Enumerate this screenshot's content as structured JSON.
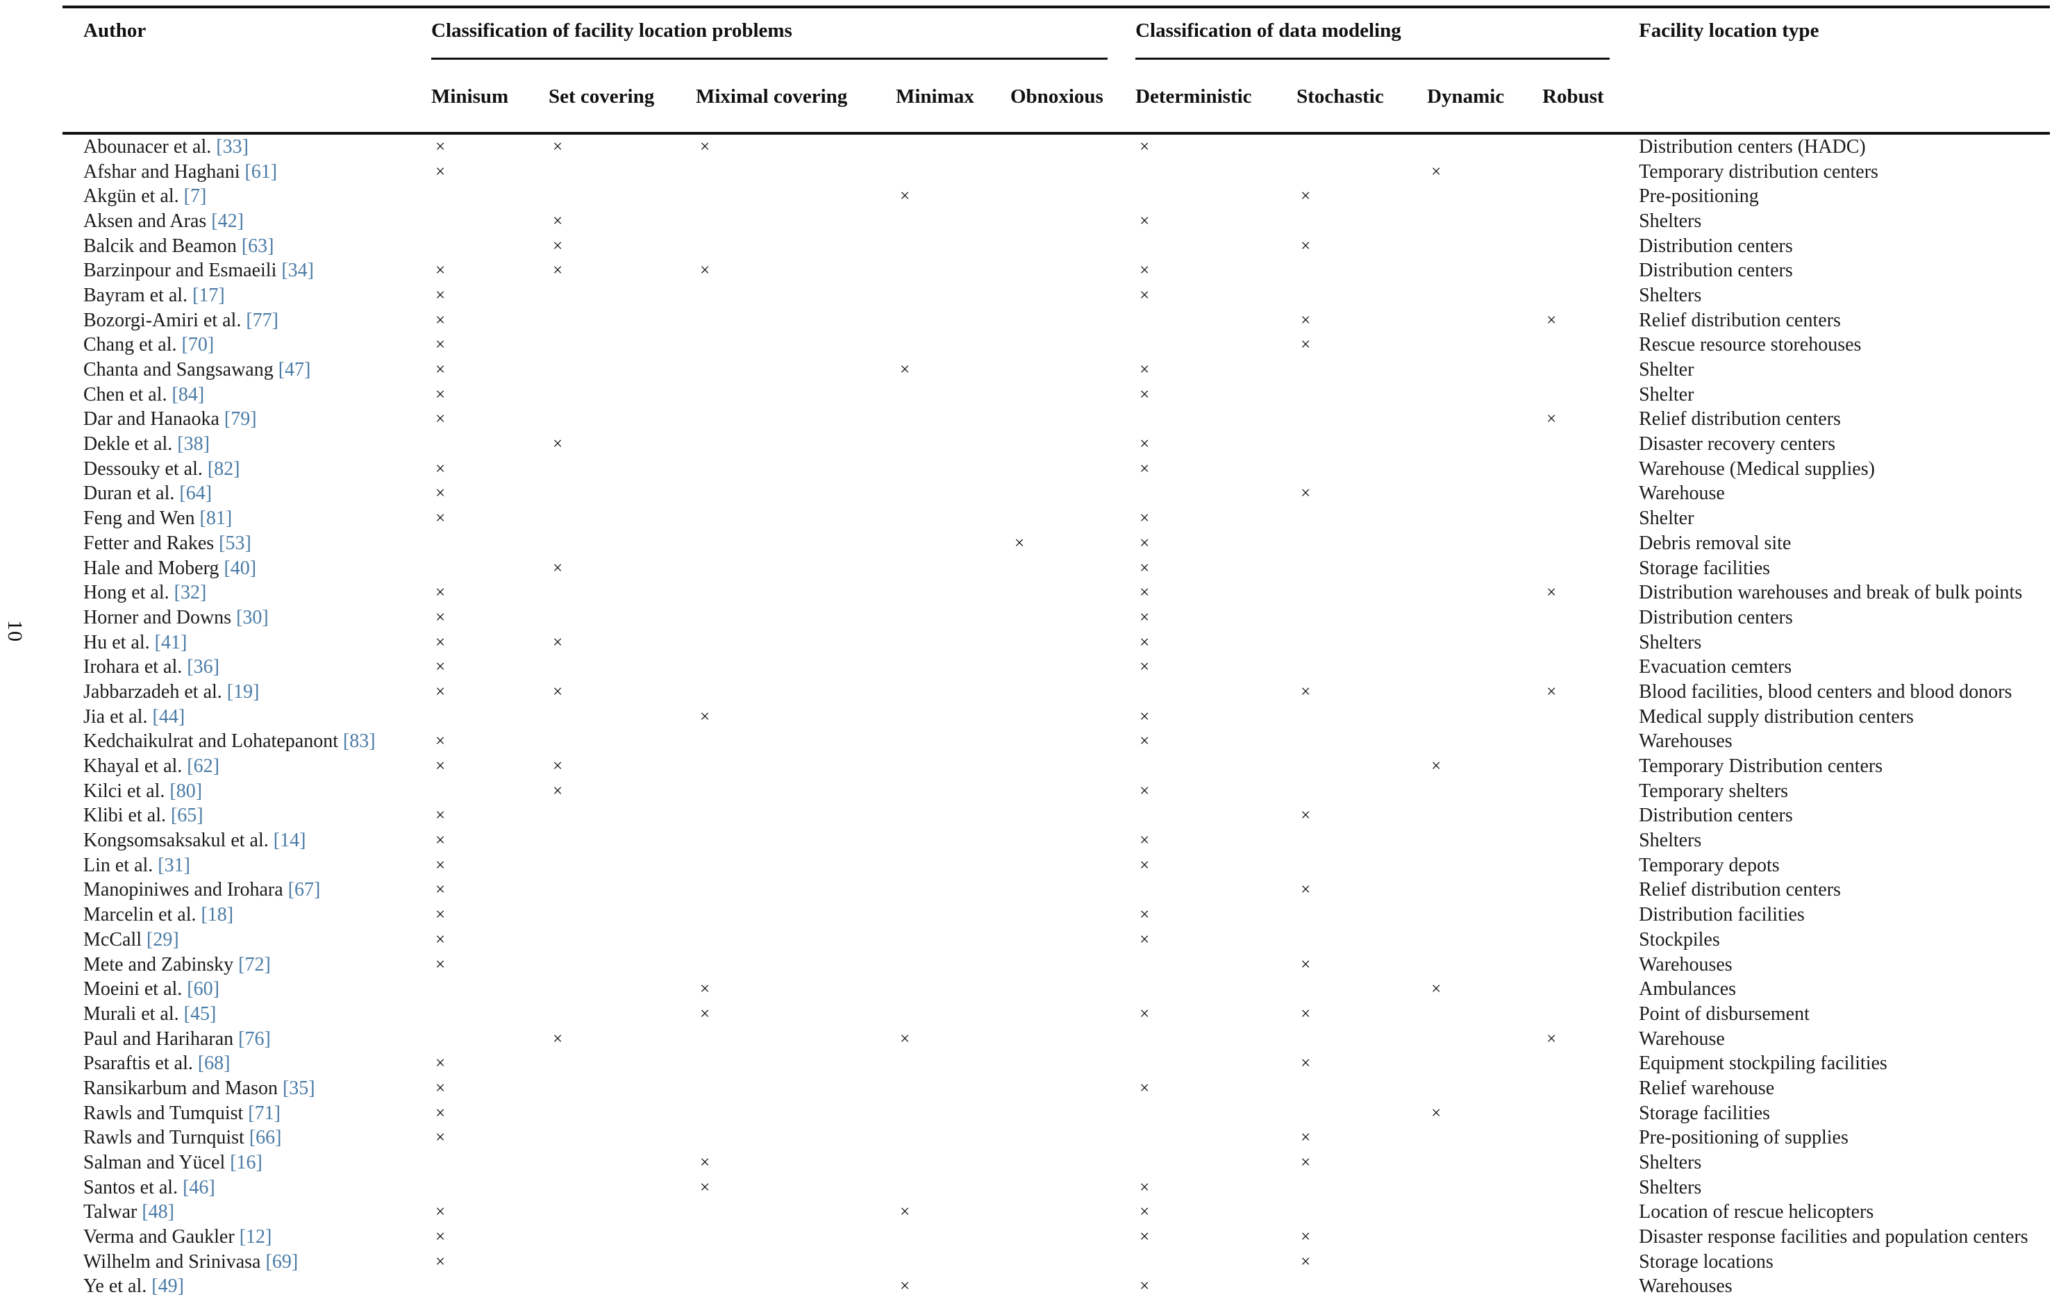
{
  "page_number": "10",
  "link_color": "#4a7ba6",
  "table": {
    "mark": "×",
    "headers": {
      "author": "Author",
      "group1": "Classification of facility location problems",
      "group2": "Classification of data modeling",
      "facility": "Facility location type",
      "sub1": [
        "Minisum",
        "Set covering",
        "Miximal covering",
        "Minimax",
        "Obnoxious"
      ],
      "sub2": [
        "Deterministic",
        "Stochastic",
        "Dynamic",
        "Robust"
      ]
    },
    "mark_columns": [
      "minisum",
      "set-covering",
      "miximal-covering",
      "minimax",
      "obnoxious",
      "deterministic",
      "stochastic",
      "dynamic",
      "robust"
    ],
    "rows": [
      {
        "author": "Abounacer et al.",
        "ref": "[33]",
        "marks": [
          1,
          1,
          1,
          0,
          0,
          1,
          0,
          0,
          0
        ],
        "type": "Distribution centers (HADC)"
      },
      {
        "author": "Afshar and Haghani",
        "ref": "[61]",
        "marks": [
          1,
          0,
          0,
          0,
          0,
          0,
          0,
          1,
          0
        ],
        "type": "Temporary distribution centers"
      },
      {
        "author": "Akgün et al.",
        "ref": "[7]",
        "marks": [
          0,
          0,
          0,
          1,
          0,
          0,
          1,
          0,
          0
        ],
        "type": "Pre-positioning"
      },
      {
        "author": "Aksen and Aras",
        "ref": "[42]",
        "marks": [
          0,
          1,
          0,
          0,
          0,
          1,
          0,
          0,
          0
        ],
        "type": "Shelters"
      },
      {
        "author": "Balcik and Beamon",
        "ref": "[63]",
        "marks": [
          0,
          1,
          0,
          0,
          0,
          0,
          1,
          0,
          0
        ],
        "type": "Distribution centers"
      },
      {
        "author": "Barzinpour and Esmaeili",
        "ref": "[34]",
        "marks": [
          1,
          1,
          1,
          0,
          0,
          1,
          0,
          0,
          0
        ],
        "type": "Distribution centers"
      },
      {
        "author": "Bayram et al.",
        "ref": "[17]",
        "marks": [
          1,
          0,
          0,
          0,
          0,
          1,
          0,
          0,
          0
        ],
        "type": "Shelters"
      },
      {
        "author": "Bozorgi-Amiri et al.",
        "ref": "[77]",
        "marks": [
          1,
          0,
          0,
          0,
          0,
          0,
          1,
          0,
          1
        ],
        "type": "Relief distribution centers"
      },
      {
        "author": "Chang et al.",
        "ref": "[70]",
        "marks": [
          1,
          0,
          0,
          0,
          0,
          0,
          1,
          0,
          0
        ],
        "type": "Rescue resource storehouses"
      },
      {
        "author": "Chanta and Sangsawang",
        "ref": "[47]",
        "marks": [
          1,
          0,
          0,
          1,
          0,
          1,
          0,
          0,
          0
        ],
        "type": "Shelter"
      },
      {
        "author": "Chen et al.",
        "ref": "[84]",
        "marks": [
          1,
          0,
          0,
          0,
          0,
          1,
          0,
          0,
          0
        ],
        "type": "Shelter"
      },
      {
        "author": "Dar and Hanaoka",
        "ref": "[79]",
        "marks": [
          1,
          0,
          0,
          0,
          0,
          0,
          0,
          0,
          1
        ],
        "type": "Relief distribution centers"
      },
      {
        "author": "Dekle et al.",
        "ref": "[38]",
        "marks": [
          0,
          1,
          0,
          0,
          0,
          1,
          0,
          0,
          0
        ],
        "type": "Disaster recovery centers"
      },
      {
        "author": "Dessouky et al.",
        "ref": "[82]",
        "marks": [
          1,
          0,
          0,
          0,
          0,
          1,
          0,
          0,
          0
        ],
        "type": "Warehouse (Medical supplies)"
      },
      {
        "author": "Duran et al.",
        "ref": "[64]",
        "marks": [
          1,
          0,
          0,
          0,
          0,
          0,
          1,
          0,
          0
        ],
        "type": "Warehouse"
      },
      {
        "author": "Feng and Wen",
        "ref": "[81]",
        "marks": [
          1,
          0,
          0,
          0,
          0,
          1,
          0,
          0,
          0
        ],
        "type": "Shelter"
      },
      {
        "author": "Fetter and Rakes",
        "ref": "[53]",
        "marks": [
          0,
          0,
          0,
          0,
          1,
          1,
          0,
          0,
          0
        ],
        "type": "Debris removal site"
      },
      {
        "author": "Hale and Moberg",
        "ref": "[40]",
        "marks": [
          0,
          1,
          0,
          0,
          0,
          1,
          0,
          0,
          0
        ],
        "type": "Storage facilities"
      },
      {
        "author": "Hong et al.",
        "ref": "[32]",
        "marks": [
          1,
          0,
          0,
          0,
          0,
          1,
          0,
          0,
          1
        ],
        "type": "Distribution warehouses and break of bulk points"
      },
      {
        "author": "Horner and Downs",
        "ref": "[30]",
        "marks": [
          1,
          0,
          0,
          0,
          0,
          1,
          0,
          0,
          0
        ],
        "type": "Distribution centers"
      },
      {
        "author": "Hu et al.",
        "ref": "[41]",
        "marks": [
          1,
          1,
          0,
          0,
          0,
          1,
          0,
          0,
          0
        ],
        "type": "Shelters"
      },
      {
        "author": "Irohara et al.",
        "ref": "[36]",
        "marks": [
          1,
          0,
          0,
          0,
          0,
          1,
          0,
          0,
          0
        ],
        "type": "Evacuation cemters"
      },
      {
        "author": "Jabbarzadeh et al.",
        "ref": "[19]",
        "marks": [
          1,
          1,
          0,
          0,
          0,
          0,
          1,
          0,
          1
        ],
        "type": "Blood facilities, blood centers and blood donors"
      },
      {
        "author": "Jia et al.",
        "ref": "[44]",
        "marks": [
          0,
          0,
          1,
          0,
          0,
          1,
          0,
          0,
          0
        ],
        "type": "Medical supply distribution centers"
      },
      {
        "author": "Kedchaikulrat and Lohatepanont",
        "ref": "[83]",
        "marks": [
          1,
          0,
          0,
          0,
          0,
          1,
          0,
          0,
          0
        ],
        "type": "Warehouses"
      },
      {
        "author": "Khayal et al.",
        "ref": "[62]",
        "marks": [
          1,
          1,
          0,
          0,
          0,
          0,
          0,
          1,
          0
        ],
        "type": "Temporary Distribution centers"
      },
      {
        "author": "Kilci et al.",
        "ref": "[80]",
        "marks": [
          0,
          1,
          0,
          0,
          0,
          1,
          0,
          0,
          0
        ],
        "type": "Temporary shelters"
      },
      {
        "author": "Klibi et al.",
        "ref": "[65]",
        "marks": [
          1,
          0,
          0,
          0,
          0,
          0,
          1,
          0,
          0
        ],
        "type": "Distribution centers"
      },
      {
        "author": "Kongsomsaksakul et al.",
        "ref": "[14]",
        "marks": [
          1,
          0,
          0,
          0,
          0,
          1,
          0,
          0,
          0
        ],
        "type": "Shelters"
      },
      {
        "author": "Lin et al.",
        "ref": "[31]",
        "marks": [
          1,
          0,
          0,
          0,
          0,
          1,
          0,
          0,
          0
        ],
        "type": "Temporary depots"
      },
      {
        "author": "Manopiniwes and Irohara",
        "ref": "[67]",
        "marks": [
          1,
          0,
          0,
          0,
          0,
          0,
          1,
          0,
          0
        ],
        "type": "Relief distribution centers"
      },
      {
        "author": "Marcelin et al.",
        "ref": "[18]",
        "marks": [
          1,
          0,
          0,
          0,
          0,
          1,
          0,
          0,
          0
        ],
        "type": "Distribution facilities"
      },
      {
        "author": "McCall",
        "ref": "[29]",
        "marks": [
          1,
          0,
          0,
          0,
          0,
          1,
          0,
          0,
          0
        ],
        "type": "Stockpiles"
      },
      {
        "author": "Mete and Zabinsky",
        "ref": "[72]",
        "marks": [
          1,
          0,
          0,
          0,
          0,
          0,
          1,
          0,
          0
        ],
        "type": "Warehouses"
      },
      {
        "author": "Moeini et al.",
        "ref": "[60]",
        "marks": [
          0,
          0,
          1,
          0,
          0,
          0,
          0,
          1,
          0
        ],
        "type": "Ambulances"
      },
      {
        "author": "Murali et al.",
        "ref": "[45]",
        "marks": [
          0,
          0,
          1,
          0,
          0,
          1,
          1,
          0,
          0
        ],
        "type": "Point of disbursement"
      },
      {
        "author": "Paul and Hariharan",
        "ref": "[76]",
        "marks": [
          0,
          1,
          0,
          1,
          0,
          0,
          0,
          0,
          1
        ],
        "type": "Warehouse"
      },
      {
        "author": "Psaraftis et al.",
        "ref": "[68]",
        "marks": [
          1,
          0,
          0,
          0,
          0,
          0,
          1,
          0,
          0
        ],
        "type": "Equipment stockpiling facilities"
      },
      {
        "author": "Ransikarbum and Mason",
        "ref": "[35]",
        "marks": [
          1,
          0,
          0,
          0,
          0,
          1,
          0,
          0,
          0
        ],
        "type": "Relief warehouse"
      },
      {
        "author": "Rawls and Tumquist",
        "ref": "[71]",
        "marks": [
          1,
          0,
          0,
          0,
          0,
          0,
          0,
          1,
          0
        ],
        "type": "Storage facilities"
      },
      {
        "author": "Rawls and Turnquist",
        "ref": "[66]",
        "marks": [
          1,
          0,
          0,
          0,
          0,
          0,
          1,
          0,
          0
        ],
        "type": "Pre-positioning of supplies"
      },
      {
        "author": "Salman and Yücel",
        "ref": "[16]",
        "marks": [
          0,
          0,
          1,
          0,
          0,
          0,
          1,
          0,
          0
        ],
        "type": "Shelters"
      },
      {
        "author": "Santos et al.",
        "ref": "[46]",
        "marks": [
          0,
          0,
          1,
          0,
          0,
          1,
          0,
          0,
          0
        ],
        "type": "Shelters"
      },
      {
        "author": "Talwar",
        "ref": "[48]",
        "marks": [
          1,
          0,
          0,
          1,
          0,
          1,
          0,
          0,
          0
        ],
        "type": "Location of rescue helicopters"
      },
      {
        "author": "Verma and Gaukler",
        "ref": "[12]",
        "marks": [
          1,
          0,
          0,
          0,
          0,
          1,
          1,
          0,
          0
        ],
        "type": "Disaster response facilities and population centers"
      },
      {
        "author": "Wilhelm and Srinivasa",
        "ref": "[69]",
        "marks": [
          1,
          0,
          0,
          0,
          0,
          0,
          1,
          0,
          0
        ],
        "type": "Storage locations"
      },
      {
        "author": "Ye et al.",
        "ref": "[49]",
        "marks": [
          0,
          0,
          0,
          1,
          0,
          1,
          0,
          0,
          0
        ],
        "type": "Warehouses"
      }
    ]
  }
}
